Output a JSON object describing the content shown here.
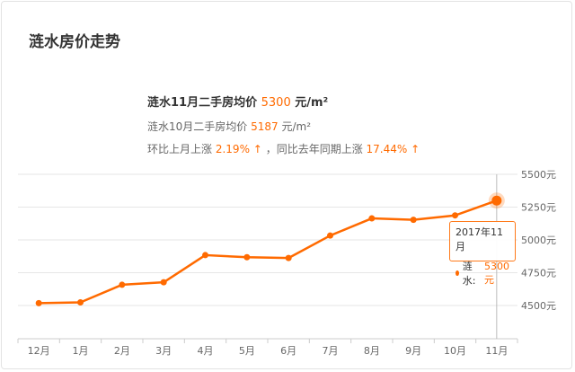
{
  "page": {
    "title": "涟水房价走势"
  },
  "summary": {
    "line1_prefix": "涟水11月二手房均价",
    "line1_value": "5300",
    "line1_unit": "元/m²",
    "line2_prefix": "涟水10月二手房均价",
    "line2_value": "5187",
    "line2_unit": "元/m²",
    "line3_part1": "环比上月上涨",
    "line3_mom": "2.19%",
    "line3_arrow1": "↑",
    "line3_part2": "，同比去年同期上涨",
    "line3_yoy": "17.44%",
    "line3_arrow2": "↑"
  },
  "tooltip": {
    "date": "2017年11月",
    "series_label": "涟水:",
    "value": "5300元"
  },
  "colors": {
    "accent": "#ff6a00",
    "grid": "#e6e6e6",
    "axis_text": "#666666"
  },
  "chart_data": {
    "type": "line",
    "categories": [
      "12月",
      "1月",
      "2月",
      "3月",
      "4月",
      "5月",
      "6月",
      "7月",
      "8月",
      "9月",
      "10月",
      "11月"
    ],
    "series": [
      {
        "values": [
          4518,
          4524,
          4658,
          4677,
          4884,
          4868,
          4862,
          5033,
          5164,
          5153,
          5187,
          5300
        ]
      }
    ],
    "y_ticks": [
      "4500元",
      "4750元",
      "5000元",
      "5250元",
      "5500元"
    ],
    "y_tick_values": [
      4500,
      4750,
      5000,
      5250,
      5500
    ],
    "ylim": [
      4500,
      5500
    ],
    "grid": true,
    "highlight_index": 11
  }
}
